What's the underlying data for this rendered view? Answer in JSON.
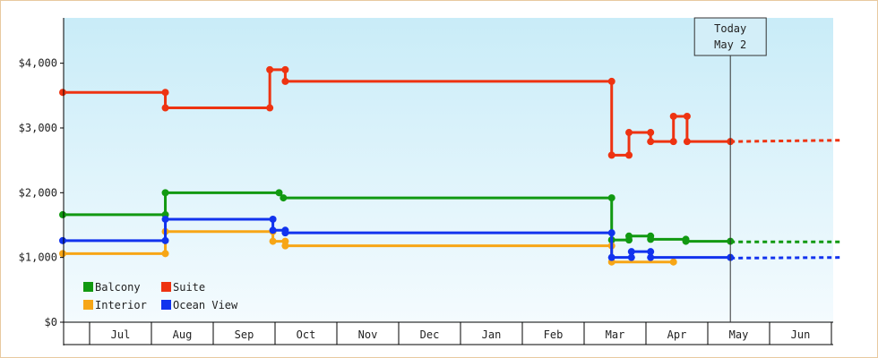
{
  "chart_data": {
    "type": "line",
    "title": "",
    "xlabel": "",
    "ylabel": "",
    "ylim": [
      0,
      4700
    ],
    "y_ticks": [
      0,
      1000,
      2000,
      3000,
      4000
    ],
    "y_tick_labels": [
      "$0",
      "$1,000",
      "$2,000",
      "$3,000",
      "$4,000"
    ],
    "x_ticks": [
      "Jul",
      "Aug",
      "Sep",
      "Oct",
      "Nov",
      "Dec",
      "Jan",
      "Feb",
      "Mar",
      "Apr",
      "May",
      "Jun"
    ],
    "grid": false,
    "legend_position": "bottom-left",
    "today_annotation": {
      "line1": "Today",
      "line2": "May 2"
    },
    "series": [
      {
        "name": "Balcony",
        "color": "#119911",
        "points": [
          [
            0,
            1660
          ],
          [
            1.66,
            1660
          ],
          [
            1.66,
            2000
          ],
          [
            3.5,
            2000
          ],
          [
            3.57,
            1920
          ],
          [
            8.88,
            1920
          ],
          [
            8.88,
            1270
          ],
          [
            9.16,
            1270
          ],
          [
            9.16,
            1330
          ],
          [
            9.51,
            1330
          ],
          [
            9.51,
            1280
          ],
          [
            10.08,
            1280
          ],
          [
            10.08,
            1250
          ],
          [
            10.8,
            1250
          ]
        ],
        "forecast": [
          [
            10.8,
            1240
          ],
          [
            12.58,
            1240
          ]
        ]
      },
      {
        "name": "Suite",
        "color": "#ee3311",
        "points": [
          [
            0,
            3550
          ],
          [
            1.66,
            3550
          ],
          [
            1.66,
            3310
          ],
          [
            3.35,
            3310
          ],
          [
            3.35,
            3900
          ],
          [
            3.6,
            3900
          ],
          [
            3.6,
            3720
          ],
          [
            8.88,
            3720
          ],
          [
            8.88,
            2580
          ],
          [
            9.16,
            2580
          ],
          [
            9.16,
            2930
          ],
          [
            9.51,
            2930
          ],
          [
            9.51,
            2790
          ],
          [
            9.88,
            2790
          ],
          [
            9.88,
            3180
          ],
          [
            10.1,
            3180
          ],
          [
            10.1,
            2790
          ],
          [
            10.8,
            2790
          ]
        ],
        "forecast": [
          [
            10.8,
            2790
          ],
          [
            12.58,
            2810
          ]
        ]
      },
      {
        "name": "Interior",
        "color": "#f7a616",
        "points": [
          [
            0,
            1060
          ],
          [
            1.66,
            1060
          ],
          [
            1.66,
            1400
          ],
          [
            3.4,
            1400
          ],
          [
            3.4,
            1250
          ],
          [
            3.6,
            1250
          ],
          [
            3.6,
            1180
          ],
          [
            8.88,
            1180
          ],
          [
            8.88,
            930
          ],
          [
            9.88,
            930
          ]
        ],
        "forecast": []
      },
      {
        "name": "Ocean View",
        "color": "#1133ee",
        "points": [
          [
            0,
            1260
          ],
          [
            1.66,
            1260
          ],
          [
            1.66,
            1590
          ],
          [
            3.4,
            1590
          ],
          [
            3.4,
            1420
          ],
          [
            3.6,
            1420
          ],
          [
            3.6,
            1380
          ],
          [
            8.88,
            1380
          ],
          [
            8.88,
            1000
          ],
          [
            9.2,
            1000
          ],
          [
            9.2,
            1090
          ],
          [
            9.51,
            1090
          ],
          [
            9.51,
            1000
          ],
          [
            10.8,
            1000
          ]
        ],
        "forecast": [
          [
            10.8,
            990
          ],
          [
            12.58,
            1000
          ]
        ]
      }
    ]
  }
}
